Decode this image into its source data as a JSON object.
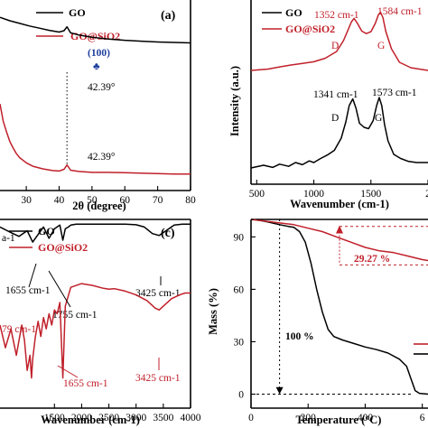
{
  "colors": {
    "go": "#000000",
    "go_sio2": "#c0202a",
    "peak_marker": "#1f3f9e"
  },
  "chart_data": [
    {
      "type": "line",
      "panel_label": "(a)",
      "xlabel": "2θ (degree)",
      "ylabel": "",
      "xlim": [
        22,
        80
      ],
      "x_ticks": [
        "30",
        "40",
        "50",
        "60",
        "70",
        "80"
      ],
      "x_tick_values": [
        30,
        40,
        50,
        60,
        70,
        80
      ],
      "y_ticks": [],
      "legend": {
        "position": "top",
        "entries": [
          "GO",
          "GO@SiO2"
        ]
      },
      "series": [
        {
          "name": "GO",
          "x": [
            22,
            25,
            28,
            31,
            34,
            37,
            40,
            41.5,
            42.4,
            43.5,
            46,
            50,
            55,
            60,
            65,
            70,
            75,
            80
          ],
          "y": [
            76,
            75.2,
            74.6,
            74.0,
            73.5,
            73.0,
            72.6,
            72.9,
            73.8,
            72.4,
            71.9,
            71.4,
            71.0,
            70.7,
            70.5,
            70.3,
            70.2,
            70.1
          ]
        },
        {
          "name": "GO@SiO2",
          "x": [
            22,
            23,
            24,
            25,
            26,
            27,
            28,
            30,
            32,
            35,
            38,
            40,
            41.5,
            42.4,
            43.5,
            46,
            50,
            55,
            60,
            65,
            70,
            75,
            80
          ],
          "y": [
            56,
            52,
            49.5,
            47.3,
            45.8,
            44.5,
            43.6,
            42.4,
            41.6,
            41.0,
            40.6,
            40.5,
            40.9,
            41.9,
            40.7,
            40.4,
            40.2,
            40.2,
            40.1,
            40.0,
            39.9,
            39.8,
            39.8
          ]
        }
      ],
      "annotations": [
        {
          "text": "(100)",
          "x": 42.39
        },
        {
          "text": "♣",
          "x": 42.39
        },
        {
          "text": "42.39°",
          "x": 42.39
        },
        {
          "text": "42.39°",
          "x": 42.39
        }
      ]
    },
    {
      "type": "line",
      "panel_label": "",
      "xlabel": "Wavenumber (cm-1)",
      "ylabel": "Intensity (a.u.)",
      "xlim": [
        450,
        2000
      ],
      "x_ticks": [
        "500",
        "1000",
        "1500",
        "2"
      ],
      "x_tick_values": [
        500,
        1000,
        1500,
        2000
      ],
      "y_ticks": [],
      "legend": {
        "position": "top-left",
        "entries": [
          "GO",
          "GO@SiO2"
        ]
      },
      "series": [
        {
          "name": "GO@SiO2",
          "x": [
            450,
            600,
            700,
            800,
            900,
            1000,
            1100,
            1200,
            1260,
            1300,
            1330,
            1352,
            1380,
            1420,
            1460,
            1500,
            1540,
            1565,
            1584,
            1605,
            1630,
            1680,
            1750,
            1850,
            2000
          ],
          "y": [
            66,
            66.5,
            67.3,
            68,
            68.6,
            69.2,
            70.5,
            73,
            77,
            81,
            84,
            85.2,
            83.5,
            80.5,
            79.6,
            80.3,
            83.5,
            86.5,
            87.5,
            85.5,
            80.5,
            74,
            69,
            67,
            66
          ]
        },
        {
          "name": "GO",
          "x": [
            450,
            560,
            640,
            700,
            780,
            840,
            900,
            960,
            1000,
            1060,
            1120,
            1180,
            1240,
            1280,
            1310,
            1341,
            1370,
            1400,
            1440,
            1480,
            1520,
            1550,
            1573,
            1595,
            1620,
            1650,
            1700,
            1760,
            1830,
            1900,
            2000
          ],
          "y": [
            30,
            31,
            30.2,
            31.4,
            30.6,
            32,
            31.2,
            32.6,
            32,
            33.5,
            34.8,
            36.5,
            41,
            47,
            53,
            55.5,
            52,
            46.5,
            45,
            44.5,
            47.5,
            53,
            56,
            53,
            46,
            40,
            35,
            33.5,
            32.4,
            32,
            32
          ]
        }
      ],
      "annotations": [
        {
          "text": "1352 cm-1",
          "x": 1352
        },
        {
          "text": "1584 cm-1",
          "x": 1584
        },
        {
          "text": "D",
          "x": 1352
        },
        {
          "text": "G",
          "x": 1584
        },
        {
          "text": "1341 cm-1",
          "x": 1341
        },
        {
          "text": "1573 cm-1",
          "x": 1573
        },
        {
          "text": "D",
          "x": 1341
        },
        {
          "text": "G",
          "x": 1573
        }
      ]
    },
    {
      "type": "line",
      "panel_label": "(c)",
      "xlabel": "Wavenumber (cm-1)",
      "ylabel": "",
      "xlim": [
        500,
        4000
      ],
      "x_ticks": [
        "1500",
        "2000",
        "2500",
        "3000",
        "3500",
        "4000"
      ],
      "x_tick_values": [
        1500,
        2000,
        2500,
        3000,
        3500,
        4000
      ],
      "y_ticks": [],
      "legend": {
        "position": "top",
        "entries": [
          "GO",
          "GO@SiO2"
        ]
      },
      "series": [
        {
          "name": "GO",
          "x": [
            500,
            700,
            850,
            1000,
            1100,
            1200,
            1300,
            1400,
            1500,
            1600,
            1655,
            1700,
            1755,
            1800,
            1900,
            2000,
            2200,
            2500,
            2800,
            3000,
            3150,
            3300,
            3425,
            3550,
            3700,
            3850,
            4000
          ],
          "y": [
            96,
            93,
            91,
            94,
            88,
            92,
            96,
            90,
            95,
            97,
            89,
            95,
            96,
            97,
            97.5,
            97.5,
            97.5,
            97.5,
            97.5,
            97.2,
            96,
            92.5,
            91.5,
            94,
            97,
            97.5,
            97.5
          ]
        },
        {
          "name": "GO@SiO2",
          "x": [
            500,
            600,
            700,
            800,
            900,
            950,
            1000,
            1050,
            1079,
            1100,
            1150,
            1200,
            1250,
            1300,
            1350,
            1400,
            1450,
            1500,
            1550,
            1600,
            1655,
            1700,
            1800,
            2000,
            2200,
            2400,
            2500,
            2600,
            2800,
            3000,
            3200,
            3350,
            3425,
            3500,
            3650,
            3800,
            3900,
            4000
          ],
          "y": [
            44,
            32,
            42,
            28,
            44,
            36,
            20,
            28,
            16,
            26,
            38,
            46,
            38,
            48,
            42,
            50,
            44,
            52,
            50,
            56,
            16,
            54,
            64,
            66,
            65,
            63.5,
            63,
            63.3,
            62,
            60,
            57,
            53,
            52,
            54,
            58,
            60,
            61,
            61
          ]
        }
      ],
      "annotations": [
        {
          "text": "1655 cm-1",
          "x": 1655
        },
        {
          "text": "1755 cm-1",
          "x": 1755
        },
        {
          "text": "3425 cm-1",
          "x": 3425
        },
        {
          "text": "79 cm-1",
          "x": 1079
        },
        {
          "text": "1655 cm-1",
          "x": 1655
        },
        {
          "text": "3425 cm-1",
          "x": 3425
        },
        {
          "text": "a-1",
          "x": 500
        }
      ]
    },
    {
      "type": "line",
      "panel_label": "",
      "xlabel": "Temperature (°C)",
      "ylabel": "Mass (%)",
      "xlim": [
        0,
        620
      ],
      "ylim": [
        -8,
        100
      ],
      "x_ticks": [
        "0",
        "200",
        "400",
        "6"
      ],
      "x_tick_values": [
        0,
        200,
        400,
        600
      ],
      "y_ticks": [
        "0",
        "30",
        "60",
        "90"
      ],
      "y_tick_values": [
        0,
        30,
        60,
        90
      ],
      "legend": {
        "position": "bottom-right",
        "entries": [
          "",
          ""
        ]
      },
      "series": [
        {
          "name": "GO",
          "x": [
            0,
            30,
            60,
            100,
            130,
            150,
            170,
            190,
            210,
            230,
            250,
            270,
            290,
            320,
            360,
            400,
            440,
            480,
            520,
            545,
            560,
            575,
            590,
            620
          ],
          "y": [
            100,
            99.5,
            98.5,
            97,
            96,
            95.5,
            93,
            87,
            75,
            60,
            47,
            37,
            33,
            31,
            29,
            27,
            25.5,
            23.5,
            20,
            16,
            9,
            2,
            0.5,
            0
          ]
        },
        {
          "name": "GO@SiO2",
          "x": [
            0,
            50,
            100,
            150,
            200,
            250,
            300,
            350,
            400,
            450,
            500,
            550,
            600,
            620
          ],
          "y": [
            100,
            99,
            98,
            97,
            95,
            93,
            90,
            87,
            84,
            82,
            81,
            79,
            77,
            76.5
          ]
        }
      ],
      "annotations": [
        {
          "text": "29.27 %",
          "x": 470
        },
        {
          "text": "100 %",
          "x": 100
        }
      ]
    }
  ]
}
